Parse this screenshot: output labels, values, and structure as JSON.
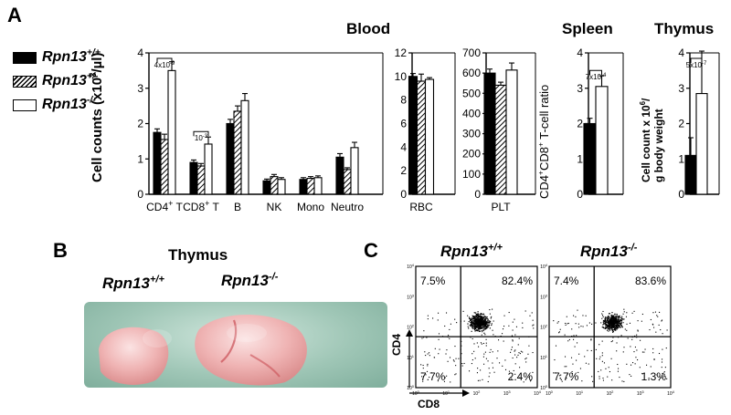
{
  "panels": {
    "A": {
      "letter": "A"
    },
    "B": {
      "letter": "B",
      "title": "Thymus",
      "label_wt": "Rpn13",
      "label_wt_sup": "+/+",
      "label_ko": "Rpn13",
      "label_ko_sup": "-/-"
    },
    "C": {
      "letter": "C",
      "title_wt": "Rpn13",
      "title_wt_sup": "+/+",
      "title_ko": "Rpn13",
      "title_ko_sup": "-/-",
      "ylabel": "CD4",
      "xlabel": "CD8"
    }
  },
  "legend": [
    {
      "label": "Rpn13",
      "sup": "+/+",
      "fill": "solid"
    },
    {
      "label": "Rpn13",
      "sup": "+/-",
      "fill": "hatched"
    },
    {
      "label": "Rpn13",
      "sup": "-/-",
      "fill": "open"
    }
  ],
  "section_titles": {
    "blood": "Blood",
    "spleen": "Spleen",
    "thymus": "Thymus"
  },
  "colors": {
    "wt": "#000000",
    "het": "#ffffff",
    "ko": "#ffffff",
    "photo_bg": "#a9cdbf",
    "organ": "#e8a2a2"
  },
  "chart_data": [
    {
      "id": "blood-cells",
      "type": "bar",
      "ylabel": "Cell counts (x10",
      "ylabel_sup": "3",
      "ylabel_tail": "/µl)",
      "ylim": [
        0,
        4
      ],
      "yticks": [
        "0",
        "1",
        "2",
        "3",
        "4"
      ],
      "categories": [
        {
          "label": "CD4",
          "sup": "+",
          "tail": " T"
        },
        {
          "label": "CD8",
          "sup": "+",
          "tail": " T"
        },
        {
          "label": "B",
          "sup": "",
          "tail": ""
        },
        {
          "label": "NK",
          "sup": "",
          "tail": ""
        },
        {
          "label": "Mono",
          "sup": "",
          "tail": ""
        },
        {
          "label": "Neutro",
          "sup": "",
          "tail": ""
        }
      ],
      "series": [
        {
          "values": [
            1.75,
            0.9,
            2.0,
            0.38,
            0.42,
            1.05
          ],
          "errors": [
            0.1,
            0.07,
            0.12,
            0.05,
            0.05,
            0.1
          ]
        },
        {
          "values": [
            1.55,
            0.8,
            2.35,
            0.5,
            0.45,
            0.7
          ],
          "errors": [
            0.15,
            0.07,
            0.15,
            0.06,
            0.05,
            0.05
          ]
        },
        {
          "values": [
            3.5,
            1.42,
            2.65,
            0.42,
            0.47,
            1.32
          ],
          "errors": [
            0.25,
            0.2,
            0.2,
            0.05,
            0.05,
            0.15
          ]
        }
      ],
      "annotations": [
        {
          "category_index": 0,
          "text": "4x10",
          "sup": "-9"
        },
        {
          "category_index": 1,
          "text": "10",
          "sup": "-3"
        }
      ]
    },
    {
      "id": "blood-rbc",
      "type": "bar",
      "ylim": [
        0,
        12
      ],
      "yticks": [
        "0",
        "2",
        "4",
        "6",
        "8",
        "10",
        "12"
      ],
      "categories": [
        {
          "label": "RBC",
          "sup": "",
          "tail": ""
        }
      ],
      "series": [
        {
          "values": [
            10.0
          ],
          "errors": [
            0.25
          ]
        },
        {
          "values": [
            9.6
          ],
          "errors": [
            0.6
          ]
        },
        {
          "values": [
            9.75
          ],
          "errors": [
            0.15
          ]
        }
      ]
    },
    {
      "id": "blood-plt",
      "type": "bar",
      "ylim": [
        0,
        700
      ],
      "yticks": [
        "0",
        "100",
        "200",
        "300",
        "400",
        "500",
        "600",
        "700"
      ],
      "categories": [
        {
          "label": "PLT",
          "sup": "",
          "tail": ""
        }
      ],
      "series": [
        {
          "values": [
            600
          ],
          "errors": [
            20
          ]
        },
        {
          "values": [
            540
          ],
          "errors": [
            15
          ]
        },
        {
          "values": [
            615
          ],
          "errors": [
            35
          ]
        }
      ]
    },
    {
      "id": "spleen-ratio",
      "type": "bar",
      "ylabel": "CD4",
      "ylabel_sup1": "+",
      "ylabel_mid": "CD8",
      "ylabel_sup2": "+",
      "ylabel_tail": " T-cell ratio",
      "ylim": [
        0,
        4
      ],
      "yticks": [
        "0",
        "1",
        "2",
        "3",
        "4"
      ],
      "categories": [
        {
          "label": "",
          "sup": "",
          "tail": ""
        }
      ],
      "series": [
        {
          "values": [
            2.0
          ],
          "errors": [
            0.15
          ]
        },
        {
          "values": [
            3.05
          ],
          "errors": [
            0.3
          ]
        }
      ],
      "annotations": [
        {
          "category_index": 0,
          "text": "7x10",
          "sup": "-4"
        }
      ]
    },
    {
      "id": "thymus-count",
      "type": "bar",
      "ylabel_line1": "Cell count x 10",
      "ylabel_line1_sup": "6",
      "ylabel_line1_tail": "/",
      "ylabel_line2": "g body weight",
      "ylim": [
        0,
        4
      ],
      "yticks": [
        "0",
        "1",
        "2",
        "3",
        "4"
      ],
      "categories": [
        {
          "label": "",
          "sup": "",
          "tail": ""
        }
      ],
      "series": [
        {
          "values": [
            1.1
          ],
          "errors": [
            0.5
          ]
        },
        {
          "values": [
            2.85
          ],
          "errors": [
            1.2
          ]
        }
      ],
      "annotations": [
        {
          "category_index": 0,
          "text": "5x10",
          "sup": "-7"
        }
      ]
    },
    {
      "id": "facs",
      "type": "scatter",
      "plots": [
        {
          "name": "Rpn13+/+",
          "quadrants": {
            "ul": "7.5%",
            "ur": "82.4%",
            "ll": "7.7%",
            "lr": "2.4%"
          }
        },
        {
          "name": "Rpn13-/-",
          "quadrants": {
            "ul": "7.4%",
            "ur": "83.6%",
            "ll": "7.7%",
            "lr": "1.3%"
          }
        }
      ],
      "axis_tick_labels": [
        "10",
        "10",
        "10",
        "10",
        "10"
      ],
      "axis_tick_exps": [
        "0",
        "1",
        "2",
        "3",
        "4"
      ]
    }
  ]
}
